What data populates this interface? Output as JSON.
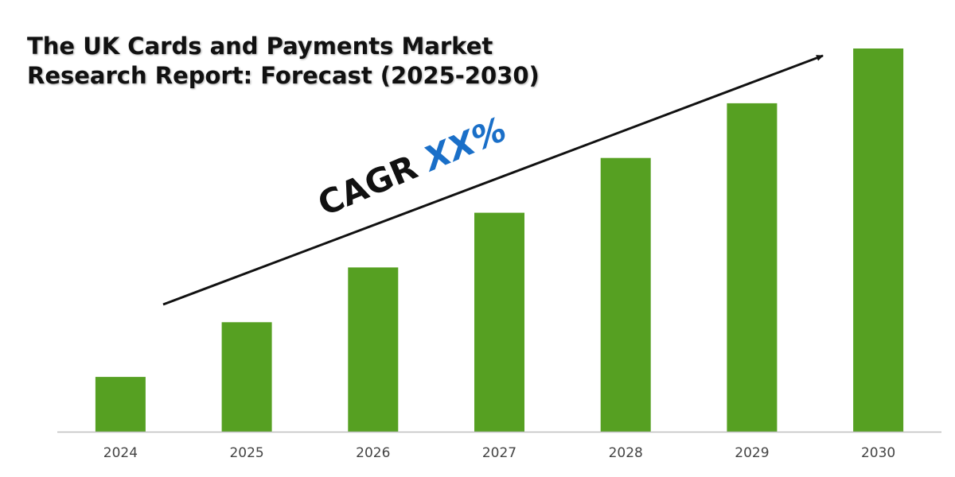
{
  "colors": {
    "bar": "#56a022",
    "axis": "#bfbfbf",
    "arrow": "#111111",
    "cagr_value": "#1a6fc8"
  },
  "annotation": {
    "cagr_prefix": "CAGR",
    "cagr_value": "XX%"
  },
  "chart_data": {
    "type": "bar",
    "title": "The UK Cards and Payments Market Research Report: Forecast (2025-2030)",
    "xlabel": "",
    "ylabel": "",
    "categories": [
      "2024",
      "2025",
      "2026",
      "2027",
      "2028",
      "2029",
      "2030"
    ],
    "values": [
      1,
      2,
      3,
      4,
      5,
      6,
      7
    ],
    "ylim": [
      0,
      7
    ],
    "grid": false,
    "legend": "none",
    "annotations": [
      "CAGR XX%"
    ]
  }
}
